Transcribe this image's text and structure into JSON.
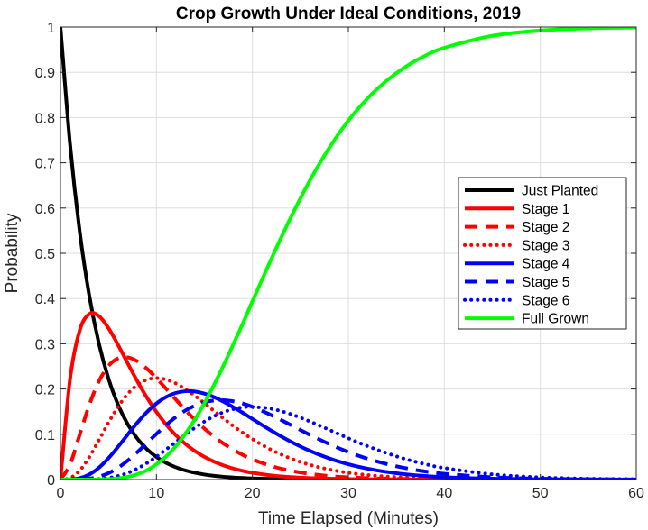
{
  "chart_data": {
    "type": "line",
    "title": "Crop Growth Under Ideal Conditions, 2019",
    "xlabel": "Time Elapsed (Minutes)",
    "ylabel": "Probability",
    "xlim": [
      0,
      60
    ],
    "ylim": [
      0,
      1
    ],
    "xticks": [
      0,
      10,
      20,
      30,
      40,
      50,
      60
    ],
    "xtick_labels": [
      "0",
      "10",
      "20",
      "30",
      "40",
      "50",
      "60"
    ],
    "yticks": [
      0,
      0.1,
      0.2,
      0.3,
      0.4,
      0.5,
      0.6,
      0.7,
      0.8,
      0.9,
      1
    ],
    "ytick_labels": [
      "0",
      "0.1",
      "0.2",
      "0.3",
      "0.4",
      "0.5",
      "0.6",
      "0.7",
      "0.8",
      "0.9",
      "1"
    ],
    "grid": true,
    "legend_position": "right",
    "x": [
      0,
      1,
      2,
      3,
      4,
      5,
      6,
      7,
      8,
      9,
      10,
      11,
      12,
      13,
      14,
      15,
      16,
      17,
      18,
      19,
      20,
      22,
      24,
      26,
      28,
      30,
      32,
      34,
      36,
      38,
      40,
      45,
      50,
      55,
      60
    ],
    "series": [
      {
        "name": "Just Planted",
        "color": "#000000",
        "style": "solid",
        "values": [
          1,
          0.7408,
          0.5488,
          0.4066,
          0.3012,
          0.2231,
          0.1653,
          0.1225,
          0.0907,
          0.0672,
          0.0498,
          0.0369,
          0.0273,
          0.0202,
          0.015,
          0.0111,
          0.0082,
          0.0061,
          0.0045,
          0.0034,
          0.0025,
          0.0014,
          0.0007,
          0.0004,
          0.0002,
          0.0001,
          0.0001,
          0,
          0,
          0,
          0,
          0,
          0,
          0,
          0
        ]
      },
      {
        "name": "Stage 1",
        "color": "#ff0000",
        "style": "solid",
        "values": [
          0,
          0.2222,
          0.3293,
          0.3659,
          0.3614,
          0.3347,
          0.2975,
          0.2572,
          0.2177,
          0.1815,
          0.1494,
          0.1217,
          0.0984,
          0.0789,
          0.063,
          0.05,
          0.0395,
          0.0311,
          0.0244,
          0.0191,
          0.0149,
          0.009,
          0.0054,
          0.0032,
          0.0019,
          0.0011,
          0.0007,
          0.0004,
          0.0002,
          0.0001,
          0.0001,
          0,
          0,
          0,
          0
        ]
      },
      {
        "name": "Stage 2",
        "color": "#ff0000",
        "style": "dashed",
        "values": [
          0,
          0.0333,
          0.0988,
          0.1647,
          0.2169,
          0.251,
          0.2678,
          0.27,
          0.2613,
          0.245,
          0.224,
          0.2008,
          0.1771,
          0.1539,
          0.1323,
          0.1125,
          0.0948,
          0.0793,
          0.0659,
          0.0544,
          0.0446,
          0.0296,
          0.0194,
          0.0125,
          0.0079,
          0.005,
          0.0031,
          0.0019,
          0.0012,
          0.0007,
          0.0004,
          0.0001,
          0,
          0,
          0
        ]
      },
      {
        "name": "Stage 3",
        "color": "#ff0000",
        "style": "dotted",
        "values": [
          0,
          0.0033,
          0.0198,
          0.0494,
          0.0867,
          0.1255,
          0.1607,
          0.189,
          0.209,
          0.2205,
          0.224,
          0.2209,
          0.2125,
          0.2001,
          0.1852,
          0.1687,
          0.1517,
          0.1348,
          0.1185,
          0.1034,
          0.0892,
          0.0652,
          0.0465,
          0.0324,
          0.0222,
          0.015,
          0.01,
          0.0066,
          0.0043,
          0.0028,
          0.0018,
          0.0006,
          0.0002,
          0.0001,
          0
        ]
      },
      {
        "name": "Stage 4",
        "color": "#0000ff",
        "style": "solid",
        "values": [
          0,
          0.0003,
          0.003,
          0.0111,
          0.026,
          0.0471,
          0.0723,
          0.0992,
          0.1254,
          0.1488,
          0.168,
          0.1823,
          0.1912,
          0.1951,
          0.1944,
          0.1898,
          0.182,
          0.1719,
          0.16,
          0.1474,
          0.1339,
          0.1076,
          0.0837,
          0.0632,
          0.0467,
          0.0337,
          0.024,
          0.0168,
          0.0116,
          0.0079,
          0.0053,
          0.0019,
          0.0007,
          0.0002,
          0.0001
        ]
      },
      {
        "name": "Stage 5",
        "color": "#0000ff",
        "style": "dashed",
        "values": [
          0,
          0,
          0.0004,
          0.002,
          0.0062,
          0.0141,
          0.026,
          0.0417,
          0.0602,
          0.0804,
          0.1008,
          0.1203,
          0.1377,
          0.1522,
          0.1633,
          0.1708,
          0.1747,
          0.1753,
          0.1728,
          0.168,
          0.1606,
          0.142,
          0.1205,
          0.0986,
          0.0785,
          0.0607,
          0.046,
          0.0343,
          0.025,
          0.0179,
          0.0127,
          0.0051,
          0.0019,
          0.0007,
          0.0002
        ]
      },
      {
        "name": "Stage 6",
        "color": "#0000ff",
        "style": "dotted",
        "values": [
          0,
          0,
          0,
          0.0003,
          0.0012,
          0.0035,
          0.0078,
          0.0146,
          0.0241,
          0.0362,
          0.0504,
          0.0662,
          0.0826,
          0.0989,
          0.1143,
          0.1281,
          0.1398,
          0.149,
          0.1555,
          0.1596,
          0.1606,
          0.1562,
          0.1446,
          0.1282,
          0.1099,
          0.0911,
          0.0737,
          0.0583,
          0.0449,
          0.0341,
          0.0255,
          0.0116,
          0.0048,
          0.0019,
          0.0007
        ]
      },
      {
        "name": "Full Grown",
        "color": "#00ff00",
        "style": "solid",
        "values": [
          0,
          0,
          0,
          0,
          0.0003,
          0.0009,
          0.0026,
          0.0059,
          0.0116,
          0.0204,
          0.0336,
          0.0509,
          0.0732,
          0.1007,
          0.1325,
          0.169,
          0.2093,
          0.2525,
          0.2984,
          0.3447,
          0.3937,
          0.489,
          0.5792,
          0.6615,
          0.7327,
          0.7933,
          0.8424,
          0.8817,
          0.9128,
          0.9365,
          0.9542,
          0.9807,
          0.9924,
          0.9971,
          0.999
        ]
      }
    ]
  }
}
